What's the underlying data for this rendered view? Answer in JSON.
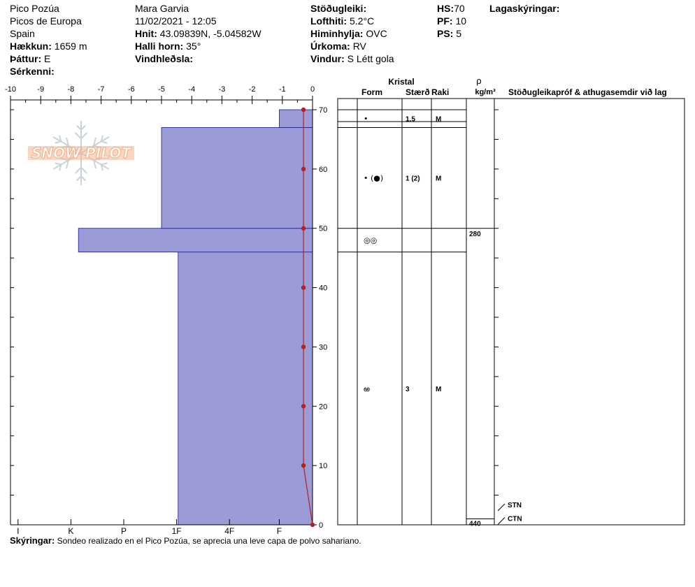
{
  "header": {
    "location": "Pico Pozúa",
    "range": "Picos de Europa",
    "country": "Spain",
    "elevation_label": "Hækkun:",
    "elevation": "1659 m",
    "aspect_label": "Þáttur:",
    "aspect": "E",
    "specifics_label": "Sérkenni:",
    "observer": "Mara Garvia",
    "datetime": "11/02/2021 - 12:05",
    "coords_label": "Hnit:",
    "coords": "43.09839N, -5.04582W",
    "slope_label": "Halli horn:",
    "slope": "35°",
    "wind_loading_label": "Vindhleðsla:",
    "stability_label": "Stöðugleiki:",
    "air_temp_label": "Lofthiti:",
    "air_temp": "5.2°C",
    "sky_label": "Himinhylja:",
    "sky": "OVC",
    "precip_label": "Úrkoma:",
    "precip": "RV",
    "wind_label": "Vindur:",
    "wind": "S Létt gola",
    "hs_label": "HS:",
    "hs": "70",
    "pf_label": "PF:",
    "pf": "10",
    "ps_label": "PS:",
    "ps": "5",
    "layer_notes_label": "Lagaskýringar:"
  },
  "logo": {
    "text": "SNOW PILOT"
  },
  "table_headers": {
    "crystal": "Kristal",
    "form": "Form",
    "size": "Stærð",
    "moisture": "Raki",
    "rho": "ρ",
    "rho_unit": "kg/m³",
    "tests": "Stöðugleikapróf & athugasemdir við lag"
  },
  "footer": {
    "label": "Skýringar:",
    "text": "Sondeo realizado en el Pico Pozúa, se aprecia una leve capa de polvo sahariano."
  },
  "colors": {
    "hardness_fill": "#9b9bd6",
    "hardness_stroke": "#1a1a8c",
    "temperature": "#b22222",
    "logo_orange": "#f2b48e"
  },
  "chart_data": {
    "type": "snow-profile",
    "height_axis": {
      "min": 0,
      "max": 70,
      "ticks": [
        0,
        10,
        20,
        30,
        40,
        50,
        60,
        70
      ]
    },
    "temperature_axis": {
      "min": -10,
      "max": 0,
      "ticks": [
        "-10",
        "-9",
        "-8",
        "-7",
        "-6",
        "-5",
        "-4",
        "-3",
        "-2",
        "-1",
        "0"
      ]
    },
    "hardness_axis": {
      "labels": [
        "I",
        "K",
        "P",
        "1F",
        "4F",
        "F"
      ],
      "positions": [
        -9.75,
        -8.0,
        -6.25,
        -4.5,
        -2.75,
        -1.1
      ]
    },
    "hardness_layers": [
      {
        "bottom": 0,
        "top": 46,
        "temp_equiv": -4.45
      },
      {
        "bottom": 46,
        "top": 50,
        "temp_equiv": -7.75
      },
      {
        "bottom": 50,
        "top": 67,
        "temp_equiv": -5.0
      },
      {
        "bottom": 67,
        "top": 70,
        "temp_equiv": -1.1
      }
    ],
    "temperature_profile": [
      {
        "height": 0,
        "temp": 0.0
      },
      {
        "height": 10,
        "temp": -0.3
      },
      {
        "height": 20,
        "temp": -0.3
      },
      {
        "height": 30,
        "temp": -0.3
      },
      {
        "height": 40,
        "temp": -0.3
      },
      {
        "height": 50,
        "temp": -0.3
      },
      {
        "height": 60,
        "temp": -0.3
      },
      {
        "height": 70,
        "temp": -0.3
      }
    ],
    "layer_boundaries": [
      0,
      46,
      50,
      67,
      68,
      70
    ],
    "crystal_rows": [
      {
        "height": 68.5,
        "form": "•",
        "size": "1.5",
        "moisture": "M"
      },
      {
        "height": 58.5,
        "form": "• (●)",
        "size": "1 (2)",
        "moisture": "M"
      },
      {
        "height": 48.0,
        "form": "◎◎",
        "size": "",
        "moisture": ""
      },
      {
        "height": 23.0,
        "form": "ఱ",
        "size": "3",
        "moisture": "M"
      }
    ],
    "density_values": [
      {
        "height": 49.0,
        "value": "280"
      },
      {
        "height": 0.2,
        "value": "440"
      }
    ],
    "test_markers": [
      {
        "height": 3.3,
        "label": "STN"
      },
      {
        "height": 1.0,
        "label": "CTN"
      }
    ]
  }
}
